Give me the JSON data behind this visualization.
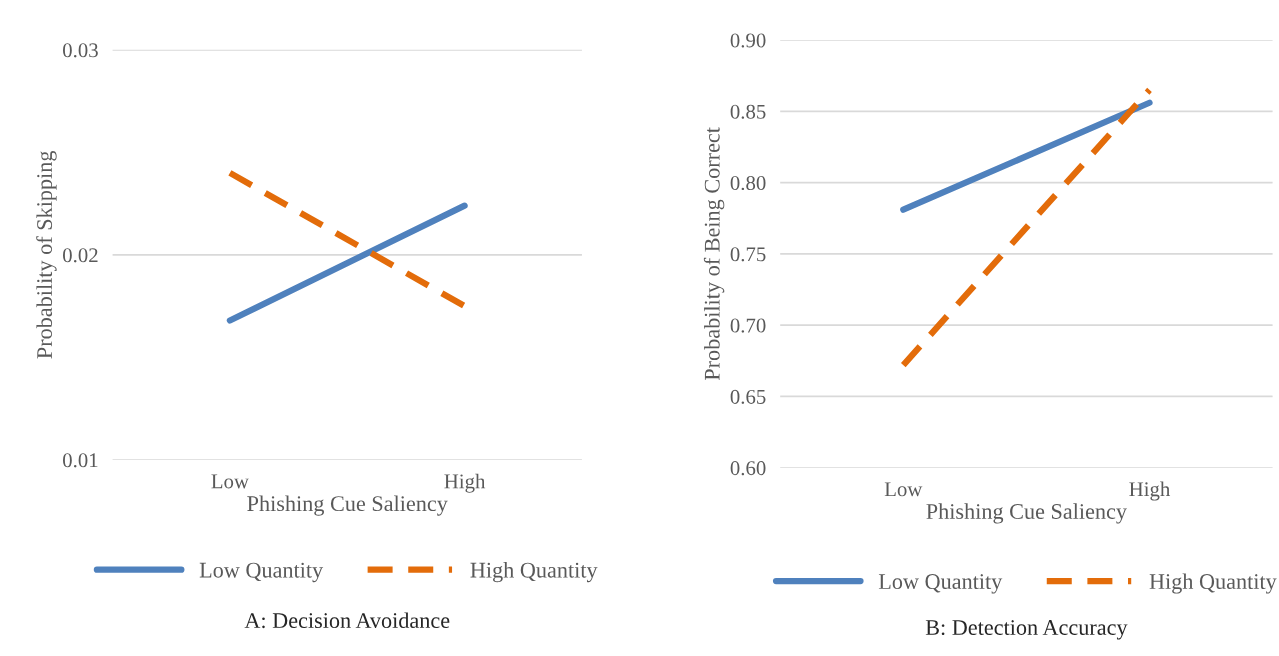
{
  "chart_data": [
    {
      "type": "line",
      "title": "A: Decision Avoidance",
      "xlabel": "Phishing Cue Saliency",
      "ylabel": "Probability of Skipping",
      "categories": [
        "Low",
        "High"
      ],
      "ylim": [
        0.01,
        0.03
      ],
      "yticks": [
        {
          "value": 0.01,
          "label": "0.01"
        },
        {
          "value": 0.02,
          "label": "0.02"
        },
        {
          "value": 0.03,
          "label": "0.03"
        }
      ],
      "grid": "y",
      "legend": "bottom",
      "series": [
        {
          "name": "Low Quantity",
          "color": "#4f81bd",
          "line_style": "solid",
          "values": [
            0.0168,
            0.0224
          ]
        },
        {
          "name": "High Quantity",
          "color": "#e36c0a",
          "line_style": "dashed",
          "values": [
            0.024,
            0.0175
          ]
        }
      ]
    },
    {
      "type": "line",
      "title": "B: Detection Accuracy",
      "xlabel": "Phishing Cue Saliency",
      "ylabel": "Probability of Being Correct",
      "categories": [
        "Low",
        "High"
      ],
      "ylim": [
        0.6,
        0.9
      ],
      "yticks": [
        {
          "value": 0.6,
          "label": "0.60"
        },
        {
          "value": 0.65,
          "label": "0.65"
        },
        {
          "value": 0.7,
          "label": "0.70"
        },
        {
          "value": 0.75,
          "label": "0.75"
        },
        {
          "value": 0.8,
          "label": "0.80"
        },
        {
          "value": 0.85,
          "label": "0.85"
        },
        {
          "value": 0.9,
          "label": "0.90"
        }
      ],
      "grid": "y",
      "legend": "bottom",
      "series": [
        {
          "name": "Low Quantity",
          "color": "#4f81bd",
          "line_style": "solid",
          "values": [
            0.781,
            0.856
          ]
        },
        {
          "name": "High Quantity",
          "color": "#e36c0a",
          "line_style": "dashed",
          "values": [
            0.672,
            0.865
          ]
        }
      ]
    }
  ]
}
